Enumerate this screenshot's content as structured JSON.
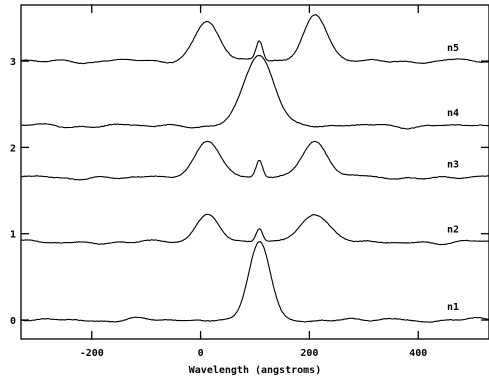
{
  "chart_data": {
    "type": "line",
    "title": "",
    "xlabel": "Wavelength (angstroms)",
    "ylabel": "",
    "xlim": [
      -330,
      530
    ],
    "ylim": [
      -0.22,
      3.65
    ],
    "xticks": [
      -200,
      0,
      200,
      400
    ],
    "yticks": [
      0,
      1,
      2,
      3
    ],
    "grid": false,
    "legend": "none",
    "line_color": "#000000",
    "series": [
      {
        "name": "n1",
        "offset": 0.0,
        "noise": 0.012,
        "peaks": [
          {
            "center": 108,
            "amp": 0.88,
            "width": 20
          }
        ]
      },
      {
        "name": "n2",
        "offset": 0.9,
        "noise": 0.012,
        "peaks": [
          {
            "center": 12,
            "amp": 0.32,
            "width": 22
          },
          {
            "center": 108,
            "amp": 0.16,
            "width": 6
          },
          {
            "center": 210,
            "amp": 0.35,
            "width": 25
          }
        ]
      },
      {
        "name": "n3",
        "offset": 1.65,
        "noise": 0.012,
        "peaks": [
          {
            "center": 12,
            "amp": 0.45,
            "width": 22
          },
          {
            "center": 108,
            "amp": 0.2,
            "width": 6
          },
          {
            "center": 210,
            "amp": 0.42,
            "width": 24
          }
        ]
      },
      {
        "name": "n4",
        "offset": 2.25,
        "noise": 0.012,
        "peaks": [
          {
            "center": 108,
            "amp": 0.8,
            "width": 28
          }
        ]
      },
      {
        "name": "n5",
        "offset": 3.0,
        "noise": 0.012,
        "peaks": [
          {
            "center": 12,
            "amp": 0.47,
            "width": 22
          },
          {
            "center": 108,
            "amp": 0.23,
            "width": 6
          },
          {
            "center": 210,
            "amp": 0.53,
            "width": 22
          }
        ]
      }
    ]
  }
}
